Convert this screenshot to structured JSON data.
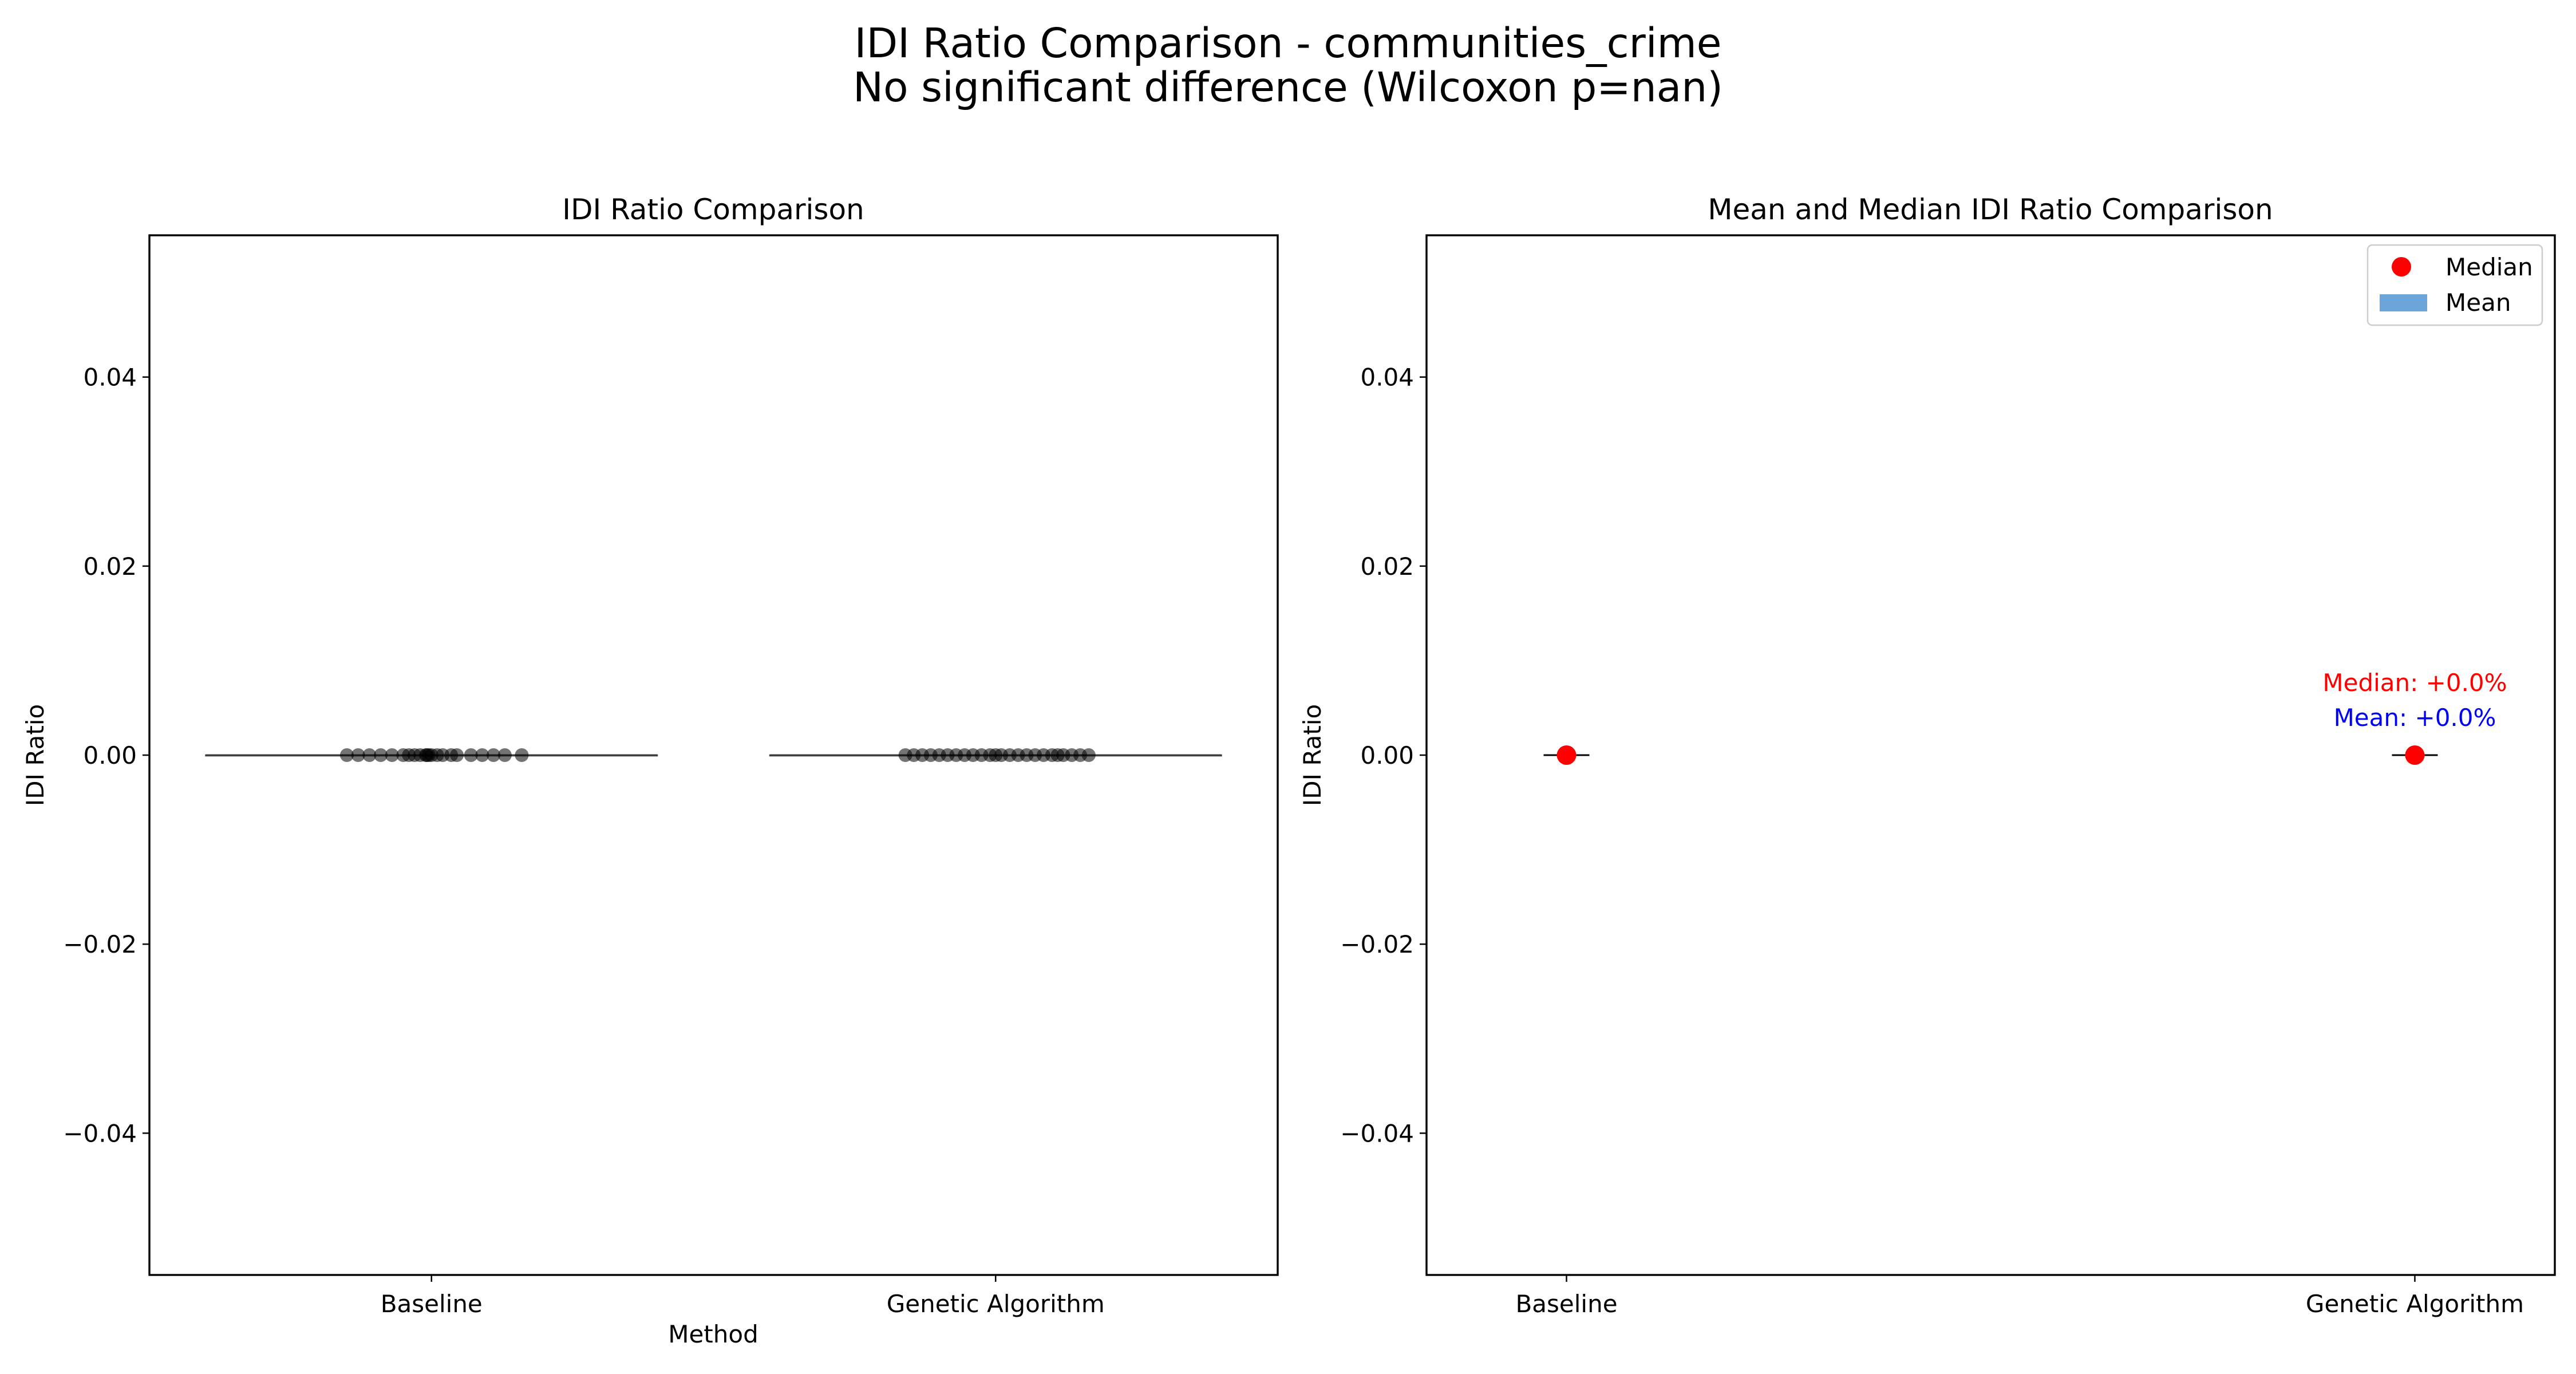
{
  "figure": {
    "suptitle_line1": "IDI Ratio Comparison - communities_crime",
    "suptitle_line2": "No significant difference (Wilcoxon p=nan)"
  },
  "colors": {
    "median": "#ff0000",
    "mean_bar": "#5b9bd5",
    "strip_point": "#000000",
    "median_annot": "#ff0000",
    "mean_annot": "#0000ff"
  },
  "chart_data": [
    {
      "type": "scatter",
      "subtype": "strip-with-box",
      "title": "IDI Ratio Comparison",
      "xlabel": "Method",
      "ylabel": "IDI Ratio",
      "categories": [
        "Baseline",
        "Genetic Algorithm"
      ],
      "ylim": [
        -0.055,
        0.055
      ],
      "yticks": [
        -0.04,
        -0.02,
        0.0,
        0.02,
        0.04
      ],
      "ytick_labels": [
        "−0.04",
        "−0.02",
        "0.00",
        "0.02",
        "0.04"
      ],
      "series": [
        {
          "category": "Baseline",
          "values": [
            0.0,
            0.0,
            0.0,
            0.0,
            0.0,
            0.0,
            0.0,
            0.0,
            0.0,
            0.0,
            0.0,
            0.0,
            0.0,
            0.0,
            0.0,
            0.0,
            0.0,
            0.0,
            0.0,
            0.0,
            0.0,
            0.0
          ],
          "jitter": [
            -0.15,
            -0.13,
            -0.11,
            -0.09,
            -0.07,
            -0.05,
            -0.04,
            -0.03,
            -0.02,
            -0.01,
            -0.008,
            -0.005,
            0.0,
            0.01,
            0.02,
            0.035,
            0.045,
            0.07,
            0.09,
            0.11,
            0.13,
            0.16
          ]
        },
        {
          "category": "Genetic Algorithm",
          "values": [
            0.0,
            0.0,
            0.0,
            0.0,
            0.0,
            0.0,
            0.0,
            0.0,
            0.0,
            0.0,
            0.0,
            0.0,
            0.0,
            0.0,
            0.0,
            0.0,
            0.0,
            0.0,
            0.0,
            0.0,
            0.0,
            0.0,
            0.0,
            0.0
          ],
          "jitter": [
            -0.16,
            -0.145,
            -0.13,
            -0.115,
            -0.1,
            -0.085,
            -0.07,
            -0.055,
            -0.04,
            -0.025,
            -0.01,
            0.0,
            0.01,
            0.025,
            0.04,
            0.055,
            0.07,
            0.085,
            0.1,
            0.11,
            0.12,
            0.135,
            0.15,
            0.165
          ]
        }
      ],
      "box": {
        "median": [
          0.0,
          0.0
        ],
        "q1": [
          0.0,
          0.0
        ],
        "q3": [
          0.0,
          0.0
        ]
      }
    },
    {
      "type": "bar",
      "subtype": "mean-bar-with-median-point",
      "title": "Mean and Median IDI Ratio Comparison",
      "xlabel": "",
      "ylabel": "IDI Ratio",
      "categories": [
        "Baseline",
        "Genetic Algorithm"
      ],
      "ylim": [
        -0.055,
        0.055
      ],
      "yticks": [
        -0.04,
        -0.02,
        0.0,
        0.02,
        0.04
      ],
      "ytick_labels": [
        "−0.04",
        "−0.02",
        "0.00",
        "0.02",
        "0.04"
      ],
      "series": [
        {
          "name": "Median",
          "values": [
            0.0,
            0.0
          ]
        },
        {
          "name": "Mean",
          "values": [
            0.0,
            0.0
          ]
        }
      ],
      "legend": {
        "position": "top-right",
        "entries": [
          "Median",
          "Mean"
        ]
      },
      "annotations": [
        {
          "category": "Genetic Algorithm",
          "text": "Median: +0.0%",
          "color": "#ff0000",
          "y": 0.0077
        },
        {
          "category": "Genetic Algorithm",
          "text": "Mean: +0.0%",
          "color": "#0000ff",
          "y": 0.004
        }
      ]
    }
  ]
}
